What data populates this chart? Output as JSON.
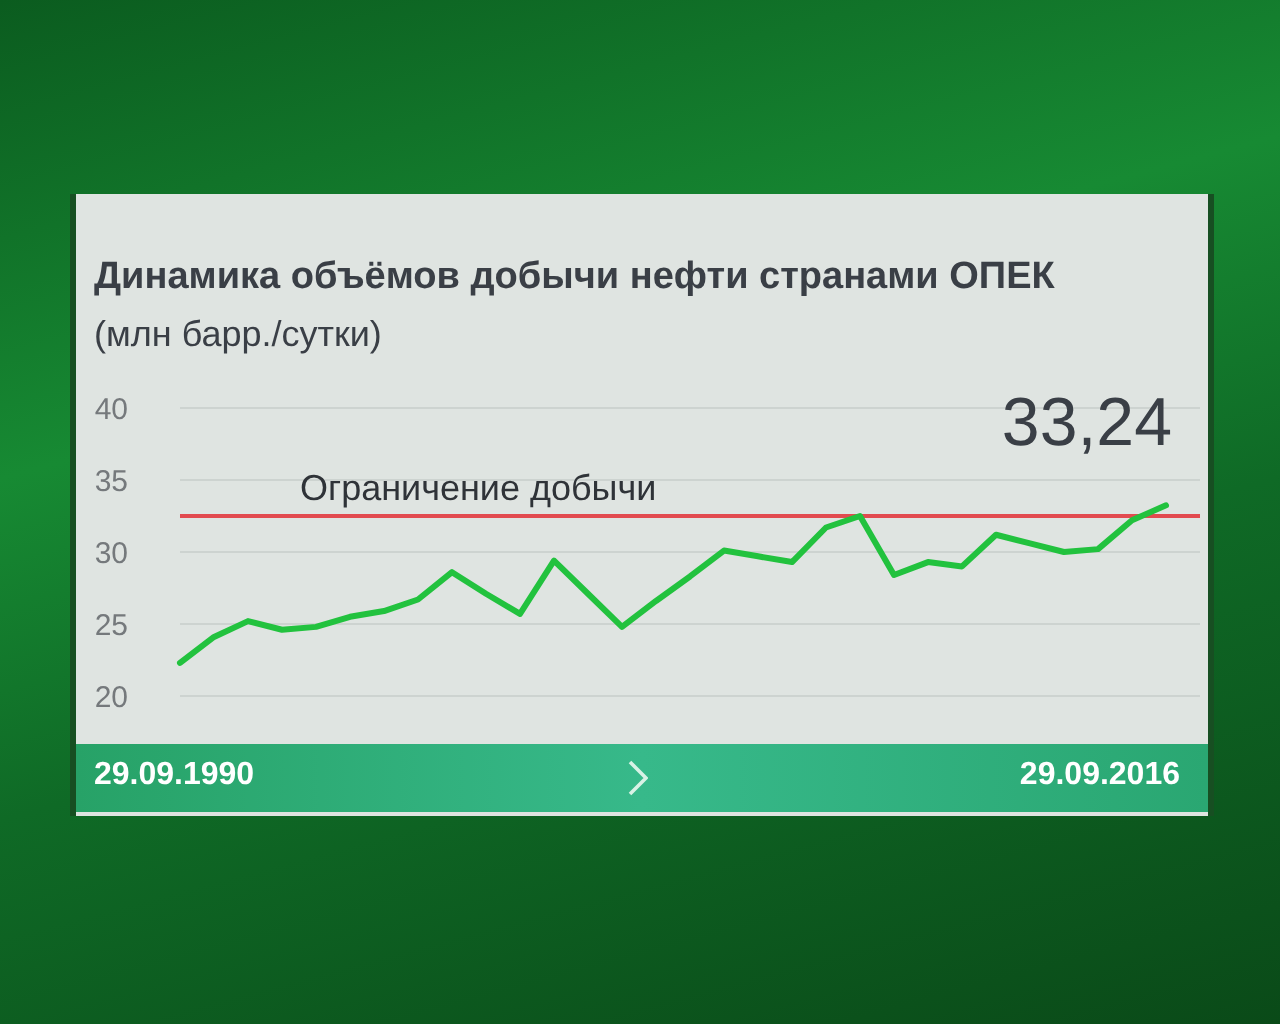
{
  "chart_data": {
    "type": "line",
    "title": "Динамика объёмов добычи нефти странами ОПЕК",
    "subtitle": "(млн барр./сутки)",
    "annotations": [
      "29.09.1990",
      "29.09.2016"
    ],
    "categories": [
      null,
      null,
      null,
      null,
      null,
      null,
      null,
      null,
      null,
      null,
      null,
      null,
      null,
      null,
      null,
      null,
      null,
      null,
      null,
      null,
      null,
      null,
      null,
      null,
      null,
      null,
      null,
      null,
      null,
      null
    ],
    "values": [
      22.3,
      24.1,
      25.2,
      24.6,
      24.8,
      25.5,
      25.9,
      26.7,
      28.6,
      27.1,
      25.7,
      29.4,
      27.1,
      24.8,
      26.6,
      28.3,
      30.1,
      29.7,
      29.3,
      31.7,
      32.5,
      28.4,
      29.3,
      29.0,
      31.2,
      30.6,
      30.0,
      30.2,
      32.2,
      33.24
    ],
    "value_labels": [
      null,
      null,
      null,
      null,
      null,
      null,
      null,
      null,
      null,
      null,
      null,
      null,
      null,
      null,
      null,
      null,
      null,
      null,
      null,
      null,
      null,
      null,
      null,
      null,
      null,
      null,
      null,
      null,
      null,
      "33,24"
    ],
    "color": "#22c23e",
    "marker": "none",
    "line_style": "solid",
    "ylim": [
      20,
      40
    ],
    "yticks": [
      20,
      25,
      30,
      35,
      40
    ],
    "grid": "y",
    "ref_lines": [
      {
        "axis": "y",
        "value": 32.5,
        "label": "Ограничение добычи",
        "color": "#e24a4f"
      }
    ]
  }
}
